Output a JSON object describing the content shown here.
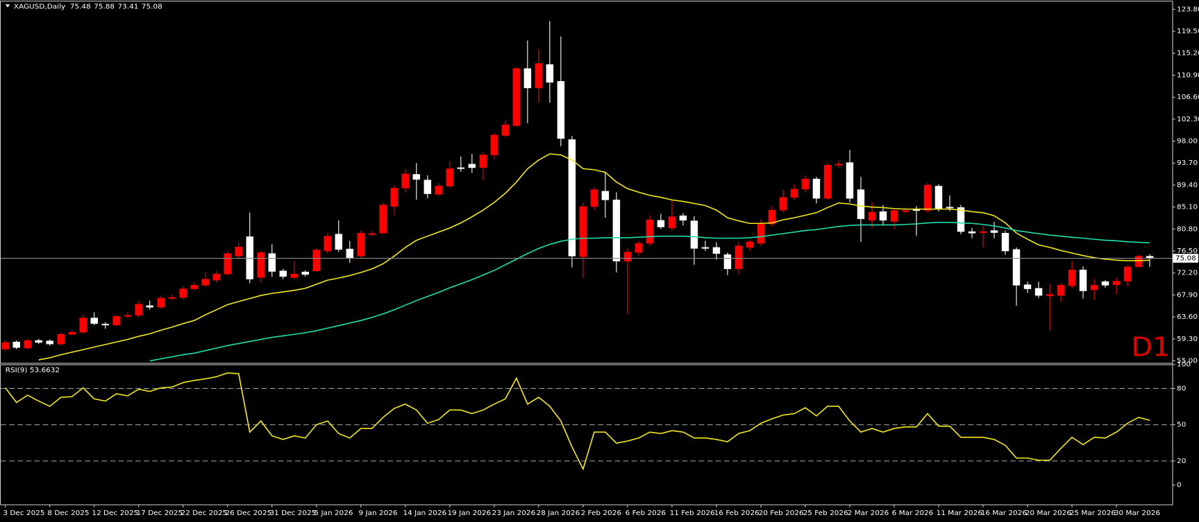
{
  "chart_data": [
    {
      "type": "candlestick",
      "title": "XAGUSD,Daily",
      "timeframe_label": "D1",
      "categories": [
        "3 Dec 2025",
        null,
        null,
        null,
        "8 Dec 2025",
        null,
        null,
        null,
        "12 Dec 2025",
        null,
        null,
        null,
        "17 Dec 2025",
        null,
        null,
        null,
        "22 Dec 2025",
        null,
        null,
        null,
        "26 Dec 2025",
        null,
        null,
        null,
        "31 Dec 2025",
        null,
        null,
        null,
        "5 Jan 2026",
        null,
        null,
        null,
        "9 Jan 2026",
        null,
        null,
        null,
        "14 Jan 2026",
        null,
        null,
        null,
        "19 Jan 2026",
        null,
        null,
        null,
        "23 Jan 2026",
        null,
        null,
        null,
        "28 Jan 2026",
        null,
        null,
        null,
        "2 Feb 2026",
        null,
        null,
        null,
        "6 Feb 2026",
        null,
        null,
        null,
        "11 Feb 2026",
        null,
        null,
        null,
        "16 Feb 2026",
        null,
        null,
        null,
        "20 Feb 2026",
        null,
        null,
        null,
        "25 Feb 2026",
        null,
        null,
        null,
        "2 Mar 2026",
        null,
        null,
        null,
        "6 Mar 2026",
        null,
        null,
        null,
        "11 Mar 2026",
        null,
        null,
        null,
        "16 Mar 2026",
        null,
        null,
        null,
        "20 Mar 2026",
        null,
        null,
        null,
        "25 Mar 2026",
        null,
        null,
        null,
        "30 Mar 2026",
        null,
        null,
        null
      ],
      "open": [
        57.3,
        58.7,
        57.5,
        59.0,
        58.9,
        58.3,
        60.2,
        60.6,
        63.4,
        62.2,
        62.0,
        63.7,
        63.9,
        65.8,
        65.5,
        67.2,
        67.4,
        69.1,
        69.8,
        70.8,
        72.0,
        75.5,
        79.3,
        71.3,
        76.0,
        72.6,
        71.3,
        72.4,
        72.6,
        76.5,
        79.8,
        76.9,
        75.5,
        79.7,
        80.0,
        85.2,
        88.8,
        91.5,
        90.4,
        87.6,
        89.2,
        92.8,
        93.5,
        92.8,
        95.3,
        99.1,
        101,
        112.2,
        108.4,
        113.0,
        109.7,
        98.3,
        75.4,
        85.2,
        88.2,
        86.5,
        74.5,
        76.2,
        78.0,
        82.5,
        81.0,
        83.4,
        82.4,
        77.2,
        77.2,
        75.8,
        73.0,
        77.2,
        78.0,
        81.8,
        84.5,
        87.0,
        88.6,
        90.6,
        86.8,
        93.3,
        93.8,
        88.5,
        82.5,
        84.2,
        82.3,
        84.2,
        84.7,
        84.4,
        89.2,
        85.1,
        85.0,
        80.3,
        80.1,
        80.5,
        80.0,
        76.8,
        69.9,
        69.2,
        67.7,
        67.8,
        69.7,
        72.8,
        68.9,
        70.5,
        69.9,
        70.6,
        73.4,
        75.48
      ],
      "high": [
        59,
        59,
        59.3,
        59.3,
        59.2,
        60.5,
        61,
        64,
        64.5,
        62.6,
        64,
        64.5,
        66.8,
        66.8,
        67.8,
        68,
        69.6,
        70.5,
        72.4,
        72.6,
        76.5,
        78.2,
        84,
        76.5,
        77.8,
        73,
        74.5,
        72.7,
        77,
        80,
        82.5,
        78.5,
        80.5,
        80.4,
        86,
        89.3,
        92.5,
        93.7,
        91.3,
        89.8,
        94,
        95,
        95.5,
        95.8,
        99.6,
        102,
        112.5,
        117.7,
        116,
        121.5,
        118.5,
        99,
        86,
        89,
        92,
        88,
        77,
        78.5,
        83.5,
        83.8,
        86.4,
        83.9,
        83.3,
        78.5,
        78.2,
        76.2,
        78.3,
        78.7,
        82.8,
        85.3,
        88.5,
        89.6,
        91.3,
        91,
        93.8,
        94.3,
        96.3,
        91,
        86,
        85.5,
        84.8,
        85,
        85.3,
        89.8,
        89.6,
        87.4,
        85.5,
        81,
        81.5,
        82.2,
        80.5,
        77.2,
        70.5,
        70.5,
        70,
        70.3,
        74.5,
        73.5,
        71,
        70.8,
        71.3,
        73.7,
        75.8,
        75.88
      ],
      "low": [
        57,
        57.3,
        57.2,
        58.3,
        58.0,
        58.0,
        60,
        60.3,
        62,
        61.3,
        61.8,
        63.3,
        63.5,
        65,
        65.2,
        66.8,
        67,
        68.7,
        69.5,
        70.3,
        71.8,
        74.8,
        70.2,
        70.3,
        71.5,
        71,
        71,
        71.5,
        72.4,
        76,
        76.3,
        74.2,
        75,
        79.5,
        79.8,
        83.5,
        88,
        86.5,
        86.8,
        87.3,
        88.8,
        92,
        91.8,
        90.3,
        94.5,
        98.8,
        101,
        101.5,
        105.5,
        105.5,
        97,
        73.3,
        71.2,
        84.5,
        83,
        72.3,
        64.2,
        75.5,
        77.5,
        80.8,
        80.5,
        81.5,
        73.8,
        76.5,
        74.8,
        71.8,
        72.0,
        76.5,
        77.5,
        81.3,
        84,
        86.5,
        88,
        85.8,
        86.5,
        92.8,
        86,
        78.3,
        81,
        81.5,
        80.8,
        83.8,
        79.5,
        84,
        84.2,
        84.3,
        79.8,
        79,
        77.2,
        79,
        75.8,
        65.8,
        68.3,
        67.3,
        61.0,
        66.5,
        69.2,
        67.2,
        67,
        69.3,
        68.0,
        69.6,
        73.4,
        73.41
      ],
      "close": [
        58.6,
        57.6,
        59.0,
        58.6,
        58.3,
        60.2,
        60.6,
        63.4,
        62.3,
        62.0,
        63.7,
        63.9,
        66.1,
        65.5,
        67.3,
        67.4,
        69.1,
        69.8,
        71.0,
        72.0,
        76.0,
        77.3,
        71.0,
        76.2,
        72.5,
        71.5,
        72.0,
        71.9,
        76.7,
        79.4,
        76.8,
        75.2,
        80.0,
        79.9,
        85.5,
        88.8,
        91.6,
        90.5,
        87.7,
        89.2,
        92.6,
        92.6,
        92.8,
        95.3,
        99.2,
        101.2,
        112.2,
        108.4,
        113.2,
        109.5,
        98.5,
        75.5,
        85.2,
        88.5,
        86.5,
        74.5,
        76.3,
        78.0,
        82.6,
        81.2,
        83.2,
        82.5,
        77.0,
        77.0,
        76.0,
        73.0,
        77.5,
        78.3,
        81.8,
        84.5,
        87.0,
        88.6,
        90.6,
        86.8,
        93.3,
        93.5,
        86.8,
        82.8,
        84.1,
        82.5,
        84.4,
        84.4,
        84.4,
        89.4,
        84.8,
        84.9,
        80.3,
        80.0,
        80.3,
        80.1,
        76.5,
        69.8,
        69.1,
        67.8,
        68.0,
        69.8,
        72.8,
        68.7,
        69.8,
        69.8,
        70.6,
        73.4,
        75.5,
        75.08
      ],
      "up_color": "#ff0000",
      "down_color": "#ffffff",
      "series": [
        {
          "color": "#f5e81c",
          "values": [
            null,
            null,
            null,
            55.2,
            55.6,
            56.2,
            56.7,
            57.2,
            57.7,
            58.2,
            58.7,
            59.2,
            59.8,
            60.3,
            61.0,
            61.6,
            62.3,
            62.9,
            64.0,
            65.0,
            66.0,
            66.6,
            67.2,
            67.8,
            68.2,
            68.5,
            68.8,
            69.2,
            70.0,
            70.8,
            71.2,
            71.7,
            72.3,
            73.0,
            74.0,
            75.5,
            77.2,
            78.6,
            79.4,
            80.2,
            81.0,
            82.0,
            83.2,
            84.5,
            86.0,
            87.8,
            90.0,
            92.6,
            94.3,
            95.5,
            95.3,
            94.3,
            92.6,
            92.4,
            91.9,
            90.0,
            88.7,
            88.0,
            87.4,
            87.0,
            86.5,
            86.2,
            85.8,
            85.4,
            84.5,
            83.0,
            82.4,
            81.9,
            81.9,
            82.0,
            82.6,
            83.0,
            83.5,
            84.0,
            85.0,
            85.9,
            85.7,
            85.3,
            85.1,
            85.0,
            84.8,
            84.7,
            84.7,
            84.7,
            84.7,
            84.7,
            84.5,
            84.2,
            84.0,
            83.4,
            82.0,
            80.0,
            78.8,
            77.7,
            77.2,
            76.6,
            76.1,
            75.6,
            75.2,
            74.9,
            74.7,
            74.6,
            74.6,
            74.7
          ]
        },
        {
          "color": "#1ee0b0",
          "values": [
            null,
            null,
            null,
            null,
            null,
            null,
            null,
            null,
            null,
            null,
            null,
            null,
            null,
            55.0,
            55.4,
            55.8,
            56.2,
            56.5,
            57.0,
            57.5,
            58.0,
            58.4,
            58.8,
            59.2,
            59.6,
            59.9,
            60.2,
            60.5,
            60.9,
            61.4,
            61.9,
            62.4,
            62.9,
            63.5,
            64.2,
            65.0,
            65.9,
            66.8,
            67.6,
            68.4,
            69.3,
            70.1,
            70.9,
            71.8,
            72.7,
            73.8,
            74.9,
            76.0,
            77.0,
            77.8,
            78.4,
            78.8,
            79.0,
            79.0,
            79.1,
            79.1,
            79.1,
            79.2,
            79.3,
            79.4,
            79.4,
            79.4,
            79.3,
            79.1,
            79.0,
            79.0,
            79.0,
            79.1,
            79.3,
            79.6,
            79.9,
            80.2,
            80.5,
            80.7,
            81.0,
            81.3,
            81.5,
            81.6,
            81.6,
            81.6,
            81.6,
            81.7,
            81.8,
            82.0,
            82.1,
            82.1,
            82.0,
            81.9,
            81.7,
            81.4,
            81.0,
            80.5,
            80.2,
            79.9,
            79.6,
            79.4,
            79.2,
            79.0,
            78.8,
            78.6,
            78.5,
            78.3,
            78.2,
            78.1
          ]
        }
      ],
      "ylim": [
        54.6,
        124.9
      ],
      "yticks": [
        {
          "value": 55.0,
          "label": "55.00"
        },
        {
          "value": 59.3,
          "label": "59.30"
        },
        {
          "value": 63.6,
          "label": "63.60"
        },
        {
          "value": 67.9,
          "label": "67.90"
        },
        {
          "value": 72.2,
          "label": "72.20"
        },
        {
          "value": 76.5,
          "label": "76.50"
        },
        {
          "value": 80.8,
          "label": "80.80"
        },
        {
          "value": 85.1,
          "label": "85.10"
        },
        {
          "value": 89.4,
          "label": "89.40"
        },
        {
          "value": 93.7,
          "label": "93.70"
        },
        {
          "value": 98.0,
          "label": "98.00"
        },
        {
          "value": 102.3,
          "label": "102.30"
        },
        {
          "value": 106.6,
          "label": "106.60"
        },
        {
          "value": 110.9,
          "label": "110.90"
        },
        {
          "value": 115.2,
          "label": "115.20"
        },
        {
          "value": 119.5,
          "label": "119.50"
        },
        {
          "value": 123.8,
          "label": "123.80"
        }
      ]
    },
    {
      "type": "line",
      "title": "RSI(9) 53.6632",
      "color": "#f5e81c",
      "values": [
        80.6,
        68.4,
        74.5,
        69.6,
        65.3,
        72.7,
        73.3,
        80.6,
        71.4,
        69.6,
        75.7,
        73.9,
        79.4,
        77.6,
        80.6,
        81.2,
        84.9,
        86.7,
        88.0,
        89.8,
        92.9,
        92.3,
        43.9,
        53.1,
        40.8,
        37.8,
        40.8,
        39.0,
        50,
        53.1,
        42.7,
        39.0,
        46.9,
        46.9,
        56.1,
        63.5,
        67.1,
        62.2,
        51.2,
        54.3,
        62.2,
        62.2,
        59.2,
        62.2,
        67.1,
        71.4,
        88.6,
        67.1,
        72.7,
        65.3,
        53.1,
        31.6,
        13.3,
        43.9,
        43.9,
        34.7,
        36.5,
        39.0,
        43.9,
        42.7,
        45.1,
        43.9,
        39.0,
        39.0,
        37.8,
        35.9,
        42.7,
        45.1,
        51.2,
        54.9,
        58.0,
        59.2,
        64.1,
        57.3,
        65.3,
        65.3,
        53.1,
        43.9,
        46.9,
        43.9,
        46.9,
        48.2,
        48.2,
        59.2,
        48.8,
        48.8,
        39.6,
        39.6,
        39.6,
        37.8,
        32.9,
        22.4,
        22.4,
        20.6,
        20.6,
        30.4,
        39.6,
        33.5,
        39.6,
        39.0,
        43.9,
        51.2,
        56.1,
        53.7
      ],
      "levels": [
        20,
        50,
        80
      ],
      "ylim": [
        -16,
        100
      ],
      "yticks": [
        0,
        20,
        50,
        80,
        100
      ]
    }
  ]
}
